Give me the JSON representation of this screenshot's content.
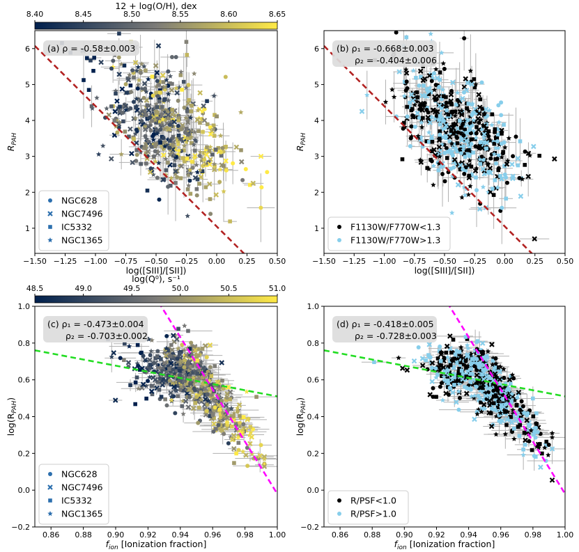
{
  "chart_data": [
    {
      "type": "scatter",
      "panel_label": "(a)",
      "annotation_lines": [
        "(a) ρ = -0.58±0.003"
      ],
      "xlabel": "log([SIII]/[SII])",
      "ylabel": "R",
      "ylabel_sub": "PAH",
      "xlim": [
        -1.5,
        0.5
      ],
      "ylim": [
        0.3,
        6.5
      ],
      "xticks": [
        -1.5,
        -1.25,
        -1.0,
        -0.75,
        -0.5,
        -0.25,
        0.0,
        0.25,
        0.5
      ],
      "xtick_labels": [
        "−1.50",
        "−1.25",
        "−1.00",
        "−0.75",
        "−0.50",
        "−0.25",
        "0.00",
        "0.25",
        "0.50"
      ],
      "yticks": [
        1,
        2,
        3,
        4,
        5,
        6
      ],
      "ytick_labels": [
        "1",
        "2",
        "3",
        "4",
        "5",
        "6"
      ],
      "color_mode": "colormap",
      "colorbar": {
        "label": "12 + log(O/H), dex",
        "range": [
          8.4,
          8.65
        ],
        "ticks": [
          "8.40",
          "8.45",
          "8.50",
          "8.55",
          "8.60",
          "8.65"
        ]
      },
      "legend": {
        "location": "lower-left",
        "entries": [
          {
            "marker": "circle",
            "label": "NGC628"
          },
          {
            "marker": "x",
            "label": "NGC7496"
          },
          {
            "marker": "square",
            "label": "IC5332"
          },
          {
            "marker": "star",
            "label": "NGC1365"
          }
        ]
      },
      "fit_lines": [
        {
          "color": "#b22222",
          "style": "dashed",
          "slope": -3.35,
          "intercept": 1.05
        }
      ],
      "cloud": {
        "kind": "rpah",
        "n": 560,
        "seed": 11
      }
    },
    {
      "type": "scatter",
      "panel_label": "(b)",
      "annotation_lines": [
        "(b) ρ₁ = -0.668±0.003",
        "ρ₂ = -0.404±0.006"
      ],
      "xlabel": "log([SIII]/[SII])",
      "ylabel": "R",
      "ylabel_sub": "PAH",
      "xlim": [
        -1.5,
        0.5
      ],
      "ylim": [
        0.3,
        6.5
      ],
      "xticks": [
        -1.5,
        -1.25,
        -1.0,
        -0.75,
        -0.5,
        -0.25,
        0.0,
        0.25,
        0.5
      ],
      "xtick_labels": [
        "−1.50",
        "−1.25",
        "−1.00",
        "−0.75",
        "−0.50",
        "−0.25",
        "0.00",
        "0.25",
        "0.50"
      ],
      "yticks": [
        1,
        2,
        3,
        4,
        5,
        6
      ],
      "ytick_labels": [
        "1",
        "2",
        "3",
        "4",
        "5",
        "6"
      ],
      "color_mode": "binary",
      "legend": {
        "location": "lower-left",
        "entries": [
          {
            "marker": "circle",
            "color": "#000000",
            "label": "F1130W/F770W<1.3"
          },
          {
            "marker": "circle",
            "color": "#87ceeb",
            "label": "F1130W/F770W>1.3"
          }
        ]
      },
      "fit_lines": [
        {
          "color": "#b22222",
          "style": "dashed",
          "slope": -3.35,
          "intercept": 1.05
        }
      ],
      "cloud": {
        "kind": "rpah",
        "n": 560,
        "seed": 23
      }
    },
    {
      "type": "scatter",
      "panel_label": "(c)",
      "annotation_lines": [
        "(c) ρ₁ = -0.473±0.004",
        "ρ₂ = -0.703±0.002"
      ],
      "xlabel": "f",
      "xlabel_sub": "ion",
      "xlabel_rest": " [Ionization fraction]",
      "ylabel": "log(R",
      "ylabel_sub": "PAH",
      "ylabel_rest": ")",
      "xlim": [
        0.85,
        1.0
      ],
      "ylim": [
        -0.2,
        1.0
      ],
      "xticks": [
        0.86,
        0.88,
        0.9,
        0.92,
        0.94,
        0.96,
        0.98,
        1.0
      ],
      "xtick_labels": [
        "0.86",
        "0.88",
        "0.90",
        "0.92",
        "0.94",
        "0.96",
        "0.98",
        "1.00"
      ],
      "yticks": [
        -0.2,
        0.0,
        0.2,
        0.4,
        0.6,
        0.8,
        1.0
      ],
      "ytick_labels": [
        "−0.2",
        "0.0",
        "0.2",
        "0.4",
        "0.6",
        "0.8",
        "1.0"
      ],
      "color_mode": "colormap",
      "colorbar": {
        "label": "log(Q⁰), s⁻¹",
        "range": [
          48.5,
          51.0
        ],
        "ticks": [
          "48.5",
          "49.0",
          "49.5",
          "50.0",
          "50.5",
          "51.0"
        ]
      },
      "legend": {
        "location": "lower-left",
        "entries": [
          {
            "marker": "circle",
            "label": "NGC628"
          },
          {
            "marker": "x",
            "label": "NGC7496"
          },
          {
            "marker": "square",
            "label": "IC5332"
          },
          {
            "marker": "star",
            "label": "NGC1365"
          }
        ]
      },
      "fit_lines": [
        {
          "color": "#22dd22",
          "style": "dashed",
          "slope": -1.67,
          "intercept": 2.18
        },
        {
          "color": "#ff00ff",
          "style": "dashed",
          "slope": -14.2,
          "intercept": 14.18
        }
      ],
      "cloud": {
        "kind": "fion",
        "n": 600,
        "seed": 37
      }
    },
    {
      "type": "scatter",
      "panel_label": "(d)",
      "annotation_lines": [
        "(d) ρ₁ = -0.418±0.005",
        "ρ₂ = -0.728±0.003"
      ],
      "xlabel": "f",
      "xlabel_sub": "ion",
      "xlabel_rest": " [Ionization fraction]",
      "ylabel": "log(R",
      "ylabel_sub": "PAH",
      "ylabel_rest": ")",
      "xlim": [
        0.85,
        1.0
      ],
      "ylim": [
        -0.2,
        1.0
      ],
      "xticks": [
        0.86,
        0.88,
        0.9,
        0.92,
        0.94,
        0.96,
        0.98,
        1.0
      ],
      "xtick_labels": [
        "0.86",
        "0.88",
        "0.90",
        "0.92",
        "0.94",
        "0.96",
        "0.98",
        "1.00"
      ],
      "yticks": [
        -0.2,
        0.0,
        0.2,
        0.4,
        0.6,
        0.8,
        1.0
      ],
      "ytick_labels": [
        "−0.2",
        "0.0",
        "0.2",
        "0.4",
        "0.6",
        "0.8",
        "1.0"
      ],
      "color_mode": "binary",
      "legend": {
        "location": "lower-left",
        "entries": [
          {
            "marker": "circle",
            "color": "#000000",
            "label": "R/PSF<1.0"
          },
          {
            "marker": "circle",
            "color": "#87ceeb",
            "label": "R/PSF>1.0"
          }
        ]
      },
      "fit_lines": [
        {
          "color": "#22dd22",
          "style": "dashed",
          "slope": -1.67,
          "intercept": 2.18
        },
        {
          "color": "#ff00ff",
          "style": "dashed",
          "slope": -14.2,
          "intercept": 14.18
        }
      ],
      "cloud": {
        "kind": "fion",
        "n": 600,
        "seed": 41
      }
    }
  ],
  "colors": {
    "cividis_low": "#00204d",
    "cividis_mid": "#7c7b78",
    "cividis_high": "#ffea46",
    "binary_a": "#000000",
    "binary_b": "#87ceeb",
    "errorbar": "#b0b0b0",
    "annotation_bg": "#dcdcdc"
  }
}
